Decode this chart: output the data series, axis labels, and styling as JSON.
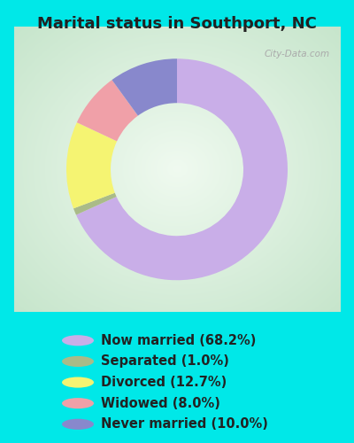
{
  "title": "Marital status in Southport, NC",
  "slices": [
    68.2,
    1.0,
    12.7,
    8.0,
    10.0
  ],
  "labels": [
    "Now married (68.2%)",
    "Separated (1.0%)",
    "Divorced (12.7%)",
    "Widowed (8.0%)",
    "Never married (10.0%)"
  ],
  "colors": [
    "#c9aee8",
    "#aabb88",
    "#f5f472",
    "#f0a0a8",
    "#8888cc"
  ],
  "bg_outer": "#00e8e8",
  "title_fontsize": 13,
  "legend_fontsize": 10.5,
  "watermark": "City-Data.com",
  "startangle": 90,
  "title_color": "#222222"
}
